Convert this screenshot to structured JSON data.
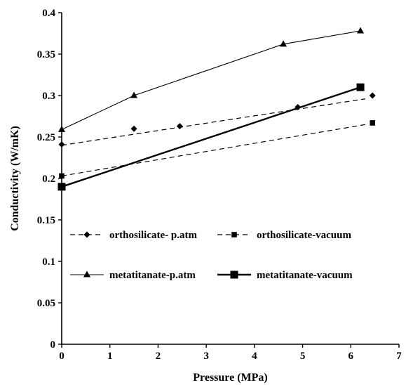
{
  "chart_data": {
    "type": "line",
    "xlabel": "Pressure (MPa)",
    "ylabel": "Conductivity (W/mK)",
    "title": "",
    "xlim": [
      0,
      7
    ],
    "ylim": [
      0,
      0.4
    ],
    "xticks": [
      "0",
      "1",
      "2",
      "3",
      "4",
      "5",
      "6",
      "7"
    ],
    "yticks": [
      "0",
      "0.05",
      "0.1",
      "0.15",
      "0.2",
      "0.25",
      "0.3",
      "0.35",
      "0.4"
    ],
    "grid": false,
    "legend_placement": "center",
    "series": [
      {
        "name": "orthosilicate- p.atm",
        "marker": "diamond",
        "line_style": "dashed",
        "points": [
          [
            0,
            0.241
          ],
          [
            1.5,
            0.26
          ],
          [
            2.45,
            0.263
          ],
          [
            4.9,
            0.286
          ],
          [
            6.45,
            0.3
          ]
        ],
        "trend": [
          [
            0,
            0.24
          ],
          [
            6.3,
            0.296
          ]
        ]
      },
      {
        "name": "orthosilicate-vacuum",
        "marker": "small-square",
        "line_style": "dashed",
        "points": [
          [
            0,
            0.203
          ],
          [
            6.45,
            0.267
          ]
        ],
        "trend": [
          [
            0,
            0.203
          ],
          [
            6.3,
            0.265
          ]
        ]
      },
      {
        "name": "metatitanate-p.atm",
        "marker": "triangle",
        "line_style": "solid-thin",
        "points": [
          [
            0,
            0.259
          ],
          [
            1.5,
            0.3
          ],
          [
            4.6,
            0.362
          ],
          [
            6.2,
            0.378
          ]
        ],
        "trend": null
      },
      {
        "name": "metatitanate-vacuum",
        "marker": "large-square",
        "line_style": "solid-thick",
        "points": [
          [
            0,
            0.19
          ],
          [
            6.2,
            0.31
          ]
        ],
        "trend": [
          [
            0,
            0.19
          ],
          [
            6.2,
            0.31
          ]
        ]
      }
    ],
    "colors": {
      "ink": "#000000",
      "background": "#ffffff"
    }
  }
}
